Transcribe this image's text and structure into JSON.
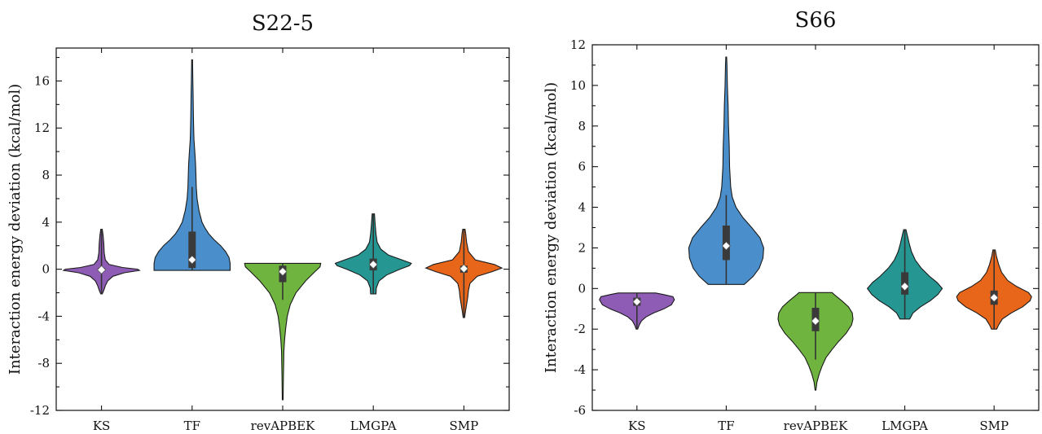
{
  "palette": {
    "KS": "#8e5cb5",
    "TF": "#4a8fcc",
    "revAPBEK": "#6fb43f",
    "LMGPA": "#269692",
    "SMP": "#e8661a"
  },
  "chart_data": [
    {
      "type": "violin",
      "title": "S22-5",
      "xlabel": "",
      "ylabel": "Interaction energy deviation (kcal/mol)",
      "categories": [
        "KS",
        "TF",
        "revAPBEK",
        "LMGPA",
        "SMP"
      ],
      "ylim": [
        -12,
        18.8
      ],
      "yticks": [
        -12,
        -8,
        -4,
        0,
        4,
        8,
        12,
        16
      ],
      "ytick_labels": [
        "-12",
        "-8",
        "-4",
        "0",
        "4",
        "8",
        "12",
        "16"
      ],
      "minor_step": 2,
      "violins": [
        {
          "name": "KS",
          "min": -2.1,
          "max": 3.4,
          "q1": -0.1,
          "q3": 0.1,
          "median": -0.05,
          "shape": [
            [
              -2.1,
              0.02
            ],
            [
              -1.8,
              0.06
            ],
            [
              -1.4,
              0.1
            ],
            [
              -1.0,
              0.16
            ],
            [
              -0.6,
              0.3
            ],
            [
              -0.3,
              0.6
            ],
            [
              -0.1,
              1.0
            ],
            [
              0.0,
              0.95
            ],
            [
              0.15,
              0.55
            ],
            [
              0.4,
              0.2
            ],
            [
              0.8,
              0.1
            ],
            [
              1.4,
              0.07
            ],
            [
              2.2,
              0.06
            ],
            [
              2.9,
              0.04
            ],
            [
              3.4,
              0.02
            ]
          ]
        },
        {
          "name": "TF",
          "min": -0.1,
          "max": 17.8,
          "q1": 0.1,
          "q3": 3.2,
          "median": 0.8,
          "whisker_low": -0.1,
          "whisker_high": 7.0,
          "shape": [
            [
              -0.1,
              1.0
            ],
            [
              0.5,
              1.0
            ],
            [
              1.0,
              0.97
            ],
            [
              1.5,
              0.88
            ],
            [
              2.0,
              0.75
            ],
            [
              2.5,
              0.58
            ],
            [
              3.0,
              0.44
            ],
            [
              3.5,
              0.34
            ],
            [
              4.0,
              0.26
            ],
            [
              5.0,
              0.18
            ],
            [
              6.0,
              0.13
            ],
            [
              7.0,
              0.11
            ],
            [
              8.0,
              0.1
            ],
            [
              9.0,
              0.09
            ],
            [
              10.0,
              0.07
            ],
            [
              11.0,
              0.05
            ],
            [
              12.0,
              0.04
            ],
            [
              13.0,
              0.035
            ],
            [
              14.0,
              0.03
            ],
            [
              15.0,
              0.025
            ],
            [
              16.0,
              0.02
            ],
            [
              17.0,
              0.015
            ],
            [
              17.8,
              0.01
            ]
          ]
        },
        {
          "name": "revAPBEK",
          "min": -11.1,
          "max": 0.5,
          "q1": -1.1,
          "q3": 0.3,
          "median": -0.2,
          "whisker_low": -2.6,
          "whisker_high": 0.5,
          "shape": [
            [
              -11.1,
              0.01
            ],
            [
              -10.0,
              0.015
            ],
            [
              -9.0,
              0.02
            ],
            [
              -8.0,
              0.025
            ],
            [
              -7.0,
              0.03
            ],
            [
              -6.0,
              0.05
            ],
            [
              -5.0,
              0.08
            ],
            [
              -4.0,
              0.12
            ],
            [
              -3.0,
              0.2
            ],
            [
              -2.0,
              0.35
            ],
            [
              -1.0,
              0.6
            ],
            [
              -0.2,
              0.85
            ],
            [
              0.2,
              0.98
            ],
            [
              0.5,
              1.0
            ]
          ]
        },
        {
          "name": "LMGPA",
          "min": -2.1,
          "max": 4.7,
          "q1": -0.1,
          "q3": 0.9,
          "median": 0.4,
          "shape": [
            [
              -2.1,
              0.07
            ],
            [
              -1.6,
              0.08
            ],
            [
              -1.0,
              0.15
            ],
            [
              -0.5,
              0.35
            ],
            [
              0.0,
              0.7
            ],
            [
              0.3,
              0.95
            ],
            [
              0.5,
              1.0
            ],
            [
              0.8,
              0.75
            ],
            [
              1.2,
              0.4
            ],
            [
              1.7,
              0.2
            ],
            [
              2.3,
              0.1
            ],
            [
              3.0,
              0.07
            ],
            [
              3.8,
              0.05
            ],
            [
              4.7,
              0.03
            ]
          ]
        },
        {
          "name": "SMP",
          "min": -4.1,
          "max": 3.4,
          "q1": -0.3,
          "q3": 0.3,
          "median": 0.05,
          "shape": [
            [
              -4.1,
              0.02
            ],
            [
              -3.6,
              0.04
            ],
            [
              -3.0,
              0.07
            ],
            [
              -2.4,
              0.1
            ],
            [
              -1.8,
              0.12
            ],
            [
              -1.2,
              0.16
            ],
            [
              -0.6,
              0.35
            ],
            [
              -0.2,
              0.75
            ],
            [
              0.1,
              1.0
            ],
            [
              0.4,
              0.8
            ],
            [
              0.8,
              0.3
            ],
            [
              1.5,
              0.12
            ],
            [
              2.3,
              0.07
            ],
            [
              3.0,
              0.05
            ],
            [
              3.4,
              0.03
            ]
          ]
        }
      ]
    },
    {
      "type": "violin",
      "title": "S66",
      "xlabel": "",
      "ylabel": "Interaction energy deviation (kcal/mol)",
      "categories": [
        "KS",
        "TF",
        "revAPBEK",
        "LMGPA",
        "SMP"
      ],
      "ylim": [
        -6,
        12
      ],
      "yticks": [
        -6,
        -4,
        -2,
        0,
        2,
        4,
        6,
        8,
        10,
        12
      ],
      "ytick_labels": [
        "-6",
        "-4",
        "-2",
        "0",
        "2",
        "4",
        "6",
        "8",
        "10",
        "12"
      ],
      "minor_step": 1,
      "violins": [
        {
          "name": "KS",
          "min": -2.0,
          "max": -0.2,
          "q1": -0.85,
          "q3": -0.45,
          "median": -0.65,
          "shape": [
            [
              -2.0,
              0.02
            ],
            [
              -1.8,
              0.06
            ],
            [
              -1.6,
              0.12
            ],
            [
              -1.4,
              0.24
            ],
            [
              -1.2,
              0.45
            ],
            [
              -1.0,
              0.72
            ],
            [
              -0.8,
              0.92
            ],
            [
              -0.55,
              1.0
            ],
            [
              -0.4,
              0.96
            ],
            [
              -0.3,
              0.72
            ],
            [
              -0.22,
              0.5
            ]
          ]
        },
        {
          "name": "TF",
          "min": 0.2,
          "max": 11.4,
          "q1": 1.4,
          "q3": 3.1,
          "median": 2.1,
          "whisker_low": 0.2,
          "whisker_high": 4.6,
          "shape": [
            [
              0.2,
              0.48
            ],
            [
              0.6,
              0.72
            ],
            [
              1.0,
              0.88
            ],
            [
              1.5,
              0.98
            ],
            [
              2.0,
              1.0
            ],
            [
              2.5,
              0.9
            ],
            [
              3.0,
              0.68
            ],
            [
              3.5,
              0.44
            ],
            [
              4.0,
              0.26
            ],
            [
              4.5,
              0.16
            ],
            [
              5.0,
              0.12
            ],
            [
              6.0,
              0.09
            ],
            [
              7.0,
              0.08
            ],
            [
              8.0,
              0.06
            ],
            [
              9.0,
              0.05
            ],
            [
              10.0,
              0.03
            ],
            [
              11.0,
              0.02
            ],
            [
              11.4,
              0.01
            ]
          ]
        },
        {
          "name": "revAPBEK",
          "min": -5.0,
          "max": -0.2,
          "q1": -2.1,
          "q3": -0.95,
          "median": -1.6,
          "whisker_low": -3.5,
          "whisker_high": -0.2,
          "shape": [
            [
              -5.0,
              0.01
            ],
            [
              -4.6,
              0.04
            ],
            [
              -4.2,
              0.1
            ],
            [
              -3.8,
              0.18
            ],
            [
              -3.4,
              0.28
            ],
            [
              -3.0,
              0.44
            ],
            [
              -2.6,
              0.62
            ],
            [
              -2.2,
              0.82
            ],
            [
              -1.8,
              0.96
            ],
            [
              -1.5,
              1.0
            ],
            [
              -1.2,
              0.98
            ],
            [
              -0.9,
              0.88
            ],
            [
              -0.6,
              0.7
            ],
            [
              -0.3,
              0.5
            ],
            [
              -0.2,
              0.44
            ]
          ]
        },
        {
          "name": "LMGPA",
          "min": -1.5,
          "max": 2.9,
          "q1": -0.3,
          "q3": 0.8,
          "median": 0.1,
          "shape": [
            [
              -1.5,
              0.13
            ],
            [
              -1.2,
              0.22
            ],
            [
              -0.9,
              0.42
            ],
            [
              -0.6,
              0.68
            ],
            [
              -0.3,
              0.88
            ],
            [
              0.0,
              1.0
            ],
            [
              0.3,
              0.86
            ],
            [
              0.6,
              0.66
            ],
            [
              1.0,
              0.44
            ],
            [
              1.4,
              0.28
            ],
            [
              1.8,
              0.18
            ],
            [
              2.2,
              0.12
            ],
            [
              2.6,
              0.07
            ],
            [
              2.9,
              0.03
            ]
          ]
        },
        {
          "name": "SMP",
          "min": -2.0,
          "max": 1.9,
          "q1": -0.8,
          "q3": -0.1,
          "median": -0.45,
          "shape": [
            [
              -2.0,
              0.07
            ],
            [
              -1.8,
              0.12
            ],
            [
              -1.5,
              0.22
            ],
            [
              -1.2,
              0.46
            ],
            [
              -0.9,
              0.76
            ],
            [
              -0.6,
              0.96
            ],
            [
              -0.4,
              1.0
            ],
            [
              -0.2,
              0.92
            ],
            [
              0.1,
              0.6
            ],
            [
              0.4,
              0.36
            ],
            [
              0.8,
              0.2
            ],
            [
              1.2,
              0.12
            ],
            [
              1.6,
              0.06
            ],
            [
              1.9,
              0.03
            ]
          ]
        }
      ]
    }
  ]
}
